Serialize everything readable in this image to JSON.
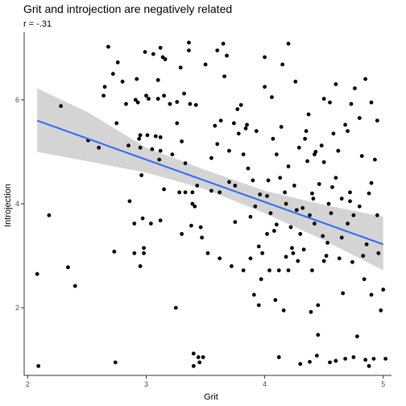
{
  "chart_data": {
    "type": "scatter",
    "title": "Grit and introjection are negatively related",
    "subtitle": "r = -.31",
    "xlabel": "Grit",
    "ylabel": "Introjection",
    "xlim": [
      1.97,
      5.07
    ],
    "ylim": [
      0.7,
      7.3
    ],
    "x_ticks": [
      2,
      3,
      4,
      5
    ],
    "y_ticks": [
      2,
      4,
      6
    ],
    "grid": false,
    "points": [
      [
        2.08,
        2.65
      ],
      [
        2.09,
        0.88
      ],
      [
        2.18,
        3.78
      ],
      [
        2.28,
        5.88
      ],
      [
        2.34,
        2.78
      ],
      [
        2.4,
        2.42
      ],
      [
        2.51,
        5.22
      ],
      [
        2.6,
        5.08
      ],
      [
        2.64,
        6.08
      ],
      [
        2.65,
        6.25
      ],
      [
        2.68,
        7.02
      ],
      [
        2.72,
        6.5
      ],
      [
        2.73,
        3.08
      ],
      [
        2.74,
        0.95
      ],
      [
        2.75,
        5.55
      ],
      [
        2.76,
        6.72
      ],
      [
        2.8,
        6.35
      ],
      [
        2.83,
        5.92
      ],
      [
        2.85,
        5.12
      ],
      [
        2.86,
        4.05
      ],
      [
        2.9,
        3.62
      ],
      [
        2.9,
        3.05
      ],
      [
        2.91,
        6.0
      ],
      [
        2.92,
        6.4
      ],
      [
        2.93,
        5.95
      ],
      [
        2.94,
        5.25
      ],
      [
        2.95,
        5.32
      ],
      [
        2.95,
        5.08
      ],
      [
        2.95,
        2.8
      ],
      [
        2.96,
        4.55
      ],
      [
        2.97,
        3.72
      ],
      [
        2.98,
        3.15
      ],
      [
        2.98,
        3.05
      ],
      [
        2.99,
        6.92
      ],
      [
        3.0,
        6.08
      ],
      [
        3.01,
        5.32
      ],
      [
        3.02,
        6.02
      ],
      [
        3.04,
        3.62
      ],
      [
        3.05,
        5.05
      ],
      [
        3.06,
        6.88
      ],
      [
        3.08,
        5.3
      ],
      [
        3.1,
        6.02
      ],
      [
        3.12,
        3.68
      ],
      [
        3.12,
        5.02
      ],
      [
        3.1,
        6.38
      ],
      [
        3.11,
        4.85
      ],
      [
        3.12,
        5.28
      ],
      [
        3.12,
        7.0
      ],
      [
        3.14,
        6.82
      ],
      [
        3.15,
        6.08
      ],
      [
        3.15,
        4.28
      ],
      [
        3.16,
        6.78
      ],
      [
        3.2,
        5.92
      ],
      [
        3.22,
        4.95
      ],
      [
        3.25,
        2.0
      ],
      [
        3.26,
        5.96
      ],
      [
        3.26,
        5.55
      ],
      [
        3.28,
        4.22
      ],
      [
        3.29,
        6.62
      ],
      [
        3.3,
        5.2
      ],
      [
        3.3,
        3.42
      ],
      [
        3.32,
        6.12
      ],
      [
        3.33,
        4.22
      ],
      [
        3.33,
        4.78
      ],
      [
        3.36,
        7.1
      ],
      [
        3.36,
        6.95
      ],
      [
        3.37,
        5.92
      ],
      [
        3.38,
        3.58
      ],
      [
        3.39,
        4.0
      ],
      [
        3.39,
        4.22
      ],
      [
        3.4,
        1.12
      ],
      [
        3.4,
        0.88
      ],
      [
        3.41,
        3.95
      ],
      [
        3.42,
        5.9
      ],
      [
        3.43,
        4.35
      ],
      [
        3.44,
        1.05
      ],
      [
        3.45,
        0.95
      ],
      [
        3.46,
        3.55
      ],
      [
        3.47,
        3.35
      ],
      [
        3.48,
        1.05
      ],
      [
        3.5,
        6.68
      ],
      [
        3.52,
        3.05
      ],
      [
        3.55,
        4.88
      ],
      [
        3.55,
        4.25
      ],
      [
        3.58,
        5.5
      ],
      [
        3.6,
        6.95
      ],
      [
        3.6,
        5.15
      ],
      [
        3.62,
        4.22
      ],
      [
        3.62,
        2.95
      ],
      [
        3.63,
        5.6
      ],
      [
        3.65,
        7.08
      ],
      [
        3.66,
        6.45
      ],
      [
        3.68,
        6.85
      ],
      [
        3.7,
        4.42
      ],
      [
        3.7,
        5.02
      ],
      [
        3.72,
        2.8
      ],
      [
        3.74,
        5.55
      ],
      [
        3.75,
        3.65
      ],
      [
        3.75,
        4.35
      ],
      [
        3.77,
        5.82
      ],
      [
        3.78,
        5.35
      ],
      [
        3.8,
        5.9
      ],
      [
        3.82,
        2.72
      ],
      [
        3.82,
        4.95
      ],
      [
        3.84,
        5.45
      ],
      [
        3.85,
        5.52
      ],
      [
        3.86,
        4.68
      ],
      [
        3.88,
        2.95
      ],
      [
        3.88,
        3.75
      ],
      [
        3.9,
        4.45
      ],
      [
        3.91,
        2.25
      ],
      [
        3.92,
        3.95
      ],
      [
        3.93,
        5.4
      ],
      [
        3.95,
        3.18
      ],
      [
        3.96,
        4.18
      ],
      [
        3.97,
        2.55
      ],
      [
        3.98,
        3.05
      ],
      [
        4.0,
        6.25
      ],
      [
        4.0,
        6.82
      ],
      [
        4.02,
        3.42
      ],
      [
        4.02,
        4.15
      ],
      [
        4.03,
        4.45
      ],
      [
        4.04,
        2.72
      ],
      [
        4.05,
        3.82
      ],
      [
        4.06,
        6.05
      ],
      [
        4.07,
        5.25
      ],
      [
        4.08,
        3.48
      ],
      [
        4.09,
        2.15
      ],
      [
        4.1,
        3.6
      ],
      [
        4.12,
        2.72
      ],
      [
        4.13,
        4.5
      ],
      [
        4.14,
        5.48
      ],
      [
        4.15,
        6.68
      ],
      [
        4.16,
        1.95
      ],
      [
        4.17,
        4.22
      ],
      [
        4.18,
        2.98
      ],
      [
        4.18,
        4.0
      ],
      [
        4.2,
        2.72
      ],
      [
        4.2,
        7.08
      ],
      [
        4.22,
        3.55
      ],
      [
        4.23,
        3.15
      ],
      [
        4.24,
        3.05
      ],
      [
        4.25,
        4.35
      ],
      [
        4.26,
        6.35
      ],
      [
        4.27,
        3.88
      ],
      [
        4.28,
        2.9
      ],
      [
        4.29,
        5.08
      ],
      [
        4.3,
        3.42
      ],
      [
        4.32,
        3.92
      ],
      [
        4.33,
        3.12
      ],
      [
        4.34,
        5.25
      ],
      [
        4.35,
        5.4
      ],
      [
        4.36,
        4.82
      ],
      [
        4.37,
        5.72
      ],
      [
        4.38,
        3.78
      ],
      [
        4.39,
        1.92
      ],
      [
        4.4,
        2.72
      ],
      [
        4.41,
        4.1
      ],
      [
        4.42,
        3.62
      ],
      [
        4.43,
        5.0
      ],
      [
        4.44,
        1.08
      ],
      [
        4.45,
        2.05
      ],
      [
        4.46,
        4.38
      ],
      [
        4.48,
        5.12
      ],
      [
        4.49,
        3.38
      ],
      [
        4.5,
        6.02
      ],
      [
        4.52,
        3.0
      ],
      [
        4.53,
        3.25
      ],
      [
        4.54,
        4.0
      ],
      [
        4.55,
        0.95
      ],
      [
        4.56,
        3.82
      ],
      [
        4.57,
        4.32
      ],
      [
        4.58,
        5.35
      ],
      [
        4.6,
        6.3
      ],
      [
        4.62,
        5.02
      ],
      [
        4.63,
        2.95
      ],
      [
        4.65,
        3.35
      ],
      [
        4.66,
        2.28
      ],
      [
        4.68,
        5.52
      ],
      [
        4.7,
        3.62
      ],
      [
        4.72,
        4.05
      ],
      [
        4.73,
        5.92
      ],
      [
        4.74,
        2.88
      ],
      [
        4.75,
        1.05
      ],
      [
        4.76,
        6.22
      ],
      [
        4.78,
        1.45
      ],
      [
        4.8,
        5.65
      ],
      [
        4.82,
        4.92
      ],
      [
        4.83,
        3.0
      ],
      [
        4.84,
        2.55
      ],
      [
        4.85,
        1.0
      ],
      [
        4.86,
        3.22
      ],
      [
        4.88,
        4.2
      ],
      [
        4.88,
        0.88
      ],
      [
        4.9,
        2.25
      ],
      [
        4.9,
        5.95
      ],
      [
        4.92,
        1.02
      ],
      [
        4.93,
        4.85
      ],
      [
        4.95,
        3.78
      ],
      [
        4.96,
        3.05
      ],
      [
        4.98,
        1.95
      ],
      [
        5.0,
        2.35
      ],
      [
        5.02,
        1.02
      ],
      [
        4.68,
        1.02
      ],
      [
        4.45,
        1.48
      ],
      [
        4.72,
        4.22
      ],
      [
        4.6,
        0.98
      ],
      [
        4.12,
        1.05
      ],
      [
        4.3,
        0.92
      ],
      [
        3.95,
        2.05
      ],
      [
        4.1,
        4.95
      ],
      [
        4.2,
        4.72
      ],
      [
        4.4,
        4.2
      ],
      [
        4.5,
        2.9
      ],
      [
        4.65,
        4.1
      ],
      [
        4.75,
        3.78
      ],
      [
        4.8,
        3.95
      ],
      [
        4.55,
        5.95
      ],
      [
        4.62,
        5.02
      ],
      [
        4.85,
        6.4
      ],
      [
        4.95,
        5.6
      ],
      [
        4.38,
        0.96
      ],
      [
        4.5,
        4.8
      ],
      [
        4.7,
        5.4
      ],
      [
        4.9,
        4.4
      ],
      [
        4.6,
        4.5
      ],
      [
        4.42,
        4.95
      ]
    ],
    "fit_line": {
      "x": [
        2.08,
        5.0
      ],
      "y": [
        5.6,
        3.22
      ]
    },
    "fit_band": {
      "x": [
        2.08,
        2.5,
        3.0,
        3.5,
        4.0,
        4.5,
        5.0
      ],
      "lower": [
        5.0,
        4.82,
        4.6,
        4.28,
        3.82,
        3.3,
        2.72
      ],
      "upper": [
        6.22,
        5.77,
        5.08,
        4.65,
        4.25,
        3.98,
        3.75
      ]
    },
    "colors": {
      "points": "#000000",
      "fit_line": "#3366FF",
      "band": "#cfcfcf",
      "axis": "#333333"
    }
  }
}
